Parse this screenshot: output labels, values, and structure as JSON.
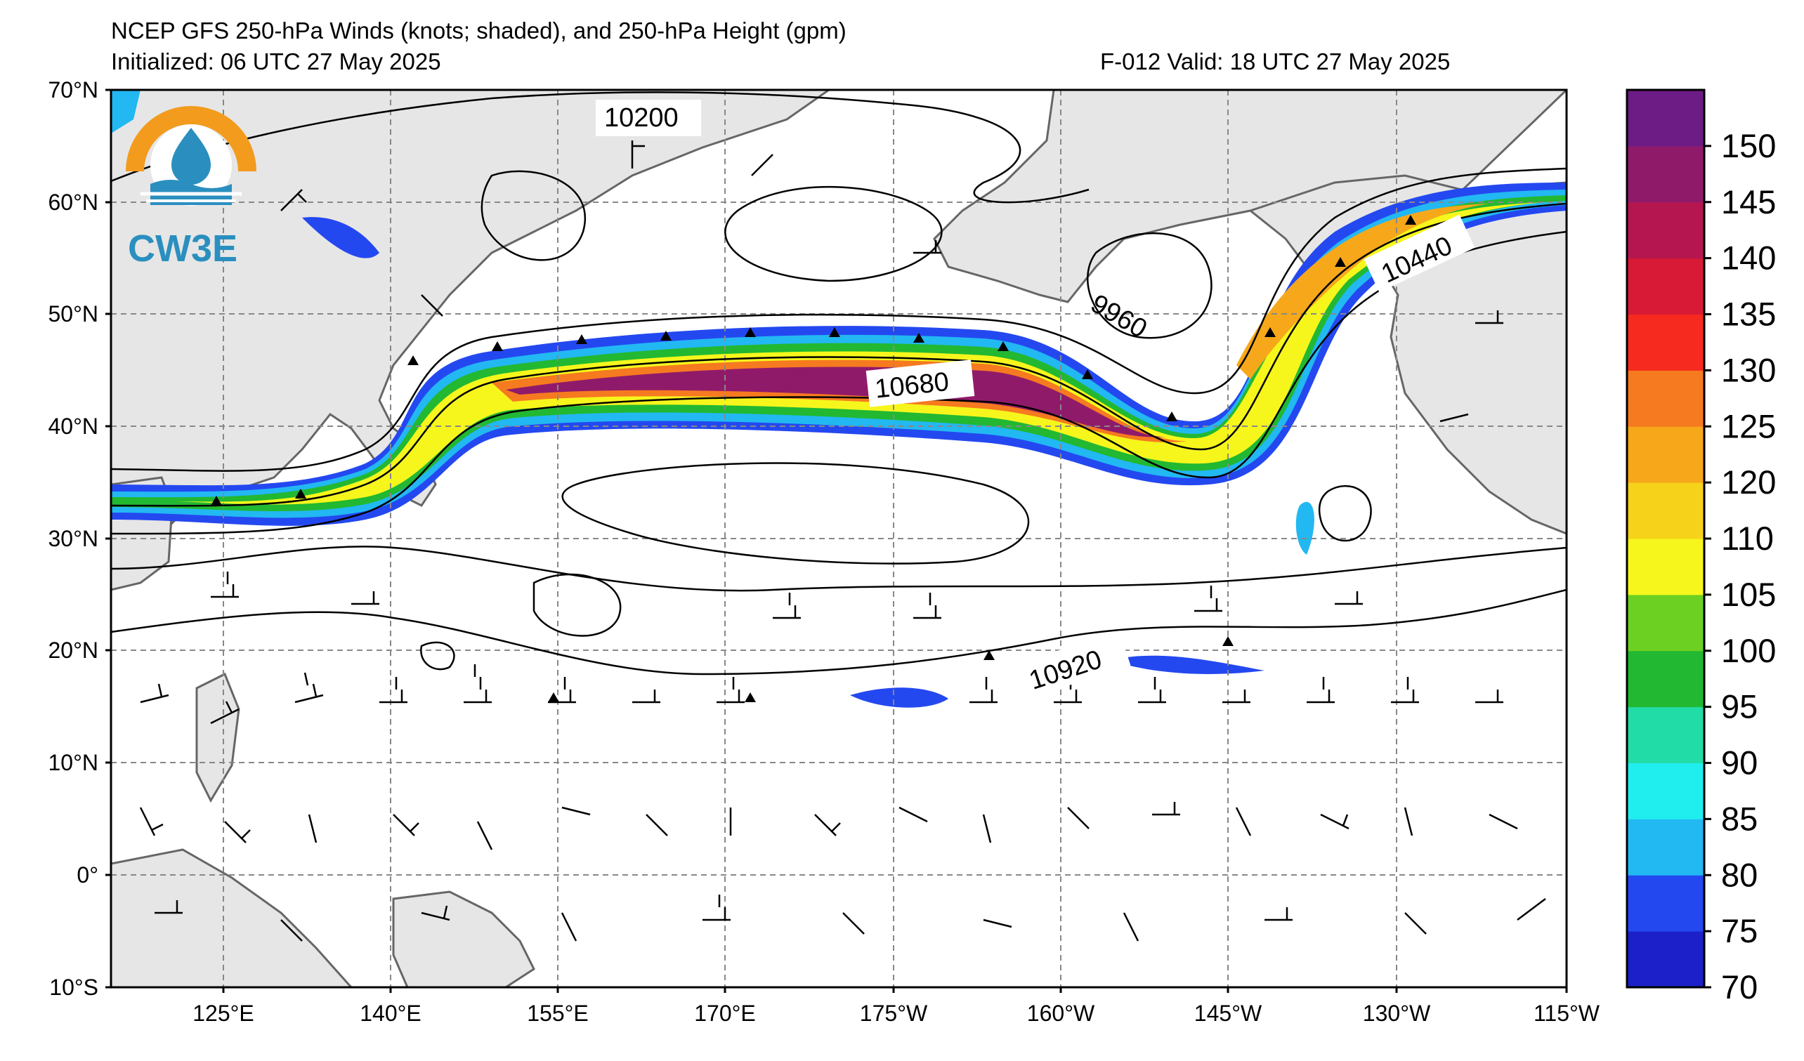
{
  "header": {
    "title": "NCEP GFS 250-hPa Winds (knots; shaded), and 250-hPa Height (gpm)",
    "initialized": "Initialized: 06 UTC 27 May 2025",
    "valid": "F-012  Valid: 18 UTC 27 May 2025"
  },
  "logo": {
    "text": "CW3E",
    "colors": {
      "ring": "#f29b1d",
      "wave": "#2a8fbf"
    }
  },
  "axes": {
    "lat_labels": [
      "70°N",
      "60°N",
      "50°N",
      "40°N",
      "30°N",
      "20°N",
      "10°N",
      "0°",
      "10°S"
    ],
    "lon_labels": [
      "125°E",
      "140°E",
      "155°E",
      "170°E",
      "175°W",
      "160°W",
      "145°W",
      "130°W",
      "115°W"
    ]
  },
  "colorbar": {
    "labels": [
      "70",
      "75",
      "80",
      "85",
      "90",
      "95",
      "100",
      "105",
      "110",
      "120",
      "125",
      "130",
      "135",
      "140",
      "145",
      "150"
    ],
    "colors": [
      "#1b20c8",
      "#2448f0",
      "#22b8f2",
      "#20eeee",
      "#22dca8",
      "#22b832",
      "#6cd022",
      "#f6f61c",
      "#f6d21a",
      "#f6a81a",
      "#f67a20",
      "#f62a1e",
      "#d81a36",
      "#b61650",
      "#901a6a",
      "#6c1c84"
    ]
  },
  "contour_labels": [
    "10200",
    "9960",
    "10440",
    "10680",
    "10920"
  ],
  "colors": {
    "land": "#e6e6e6",
    "coast": "#666666",
    "grid": "#888888",
    "contour": "#000000"
  }
}
